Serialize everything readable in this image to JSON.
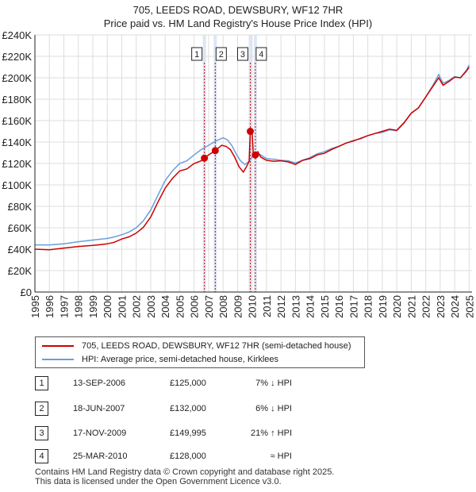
{
  "title_line1": "705, LEEDS ROAD, DEWSBURY, WF12 7HR",
  "title_line2": "Price paid vs. HM Land Registry's House Price Index (HPI)",
  "colors": {
    "price_paid": "#cc0000",
    "hpi": "#6a9fd8",
    "marker_line": "#cc0000",
    "marker_band": "#dde6f5"
  },
  "legend": [
    {
      "label": "705, LEEDS ROAD, DEWSBURY, WF12 7HR (semi-detached house)"
    },
    {
      "label": "HPI: Average price, semi-detached house, Kirklees"
    }
  ],
  "transactions": [
    {
      "num": "1",
      "date": "13-SEP-2006",
      "price": "£125,000",
      "hpi": "7% ↓ HPI"
    },
    {
      "num": "2",
      "date": "18-JUN-2007",
      "price": "£132,000",
      "hpi": "6% ↓ HPI"
    },
    {
      "num": "3",
      "date": "17-NOV-2009",
      "price": "£149,995",
      "hpi": "21% ↑ HPI"
    },
    {
      "num": "4",
      "date": "25-MAR-2010",
      "price": "£128,000",
      "hpi": "≈ HPI"
    }
  ],
  "footer_line1": "Contains HM Land Registry data © Crown copyright and database right 2025.",
  "footer_line2": "This data is licensed under the Open Government Licence v3.0.",
  "chart_data": {
    "type": "line",
    "title": "705, LEEDS ROAD, DEWSBURY, WF12 7HR — Price paid vs. HM Land Registry's House Price Index (HPI)",
    "xlabel": "",
    "ylabel": "",
    "xlim": [
      1995,
      2025.2
    ],
    "ylim": [
      0,
      240000
    ],
    "y_ticks": [
      0,
      20000,
      40000,
      60000,
      80000,
      100000,
      120000,
      140000,
      160000,
      180000,
      200000,
      220000,
      240000
    ],
    "y_tick_labels": [
      "£0",
      "£20K",
      "£40K",
      "£60K",
      "£80K",
      "£100K",
      "£120K",
      "£140K",
      "£160K",
      "£180K",
      "£200K",
      "£220K",
      "£240K"
    ],
    "x_ticks": [
      "1995",
      "1996",
      "1997",
      "1998",
      "1999",
      "2000",
      "2001",
      "2002",
      "2003",
      "2004",
      "2005",
      "2006",
      "2007",
      "2008",
      "2009",
      "2010",
      "2011",
      "2012",
      "2013",
      "2014",
      "2015",
      "2016",
      "2017",
      "2018",
      "2019",
      "2020",
      "2021",
      "2022",
      "2023",
      "2024",
      "2025"
    ],
    "grid": true,
    "series": [
      {
        "name": "705, LEEDS ROAD, DEWSBURY, WF12 7HR (semi-detached house)",
        "x": [
          1995.0,
          1996.0,
          1997.0,
          1998.0,
          1999.0,
          2000.0,
          2000.5,
          2001.0,
          2001.5,
          2002.0,
          2002.5,
          2003.0,
          2003.5,
          2004.0,
          2004.5,
          2005.0,
          2005.5,
          2006.0,
          2006.5,
          2006.7,
          2007.0,
          2007.46,
          2007.9,
          2008.2,
          2008.5,
          2008.8,
          2009.1,
          2009.4,
          2009.6,
          2009.8,
          2009.88,
          2010.0,
          2010.1,
          2010.23,
          2010.4,
          2010.6,
          2011.0,
          2011.5,
          2012.0,
          2012.5,
          2013.0,
          2013.5,
          2014.0,
          2014.5,
          2015.0,
          2015.5,
          2016.0,
          2016.5,
          2017.0,
          2017.5,
          2018.0,
          2018.5,
          2019.0,
          2019.5,
          2020.0,
          2020.5,
          2021.0,
          2021.5,
          2022.0,
          2022.5,
          2022.9,
          2023.2,
          2023.6,
          2024.0,
          2024.4,
          2024.8,
          2025.0
        ],
        "values": [
          40000,
          39500,
          41000,
          42500,
          43500,
          45000,
          46500,
          49500,
          51500,
          55000,
          60500,
          70000,
          84000,
          97000,
          106000,
          113000,
          115000,
          120000,
          122500,
          125000,
          128000,
          132000,
          137000,
          136000,
          133000,
          126000,
          117000,
          112000,
          116500,
          122000,
          149995,
          150000,
          126000,
          128000,
          131000,
          126000,
          123000,
          122000,
          122500,
          121500,
          119000,
          123000,
          124500,
          128000,
          129500,
          133000,
          136000,
          139000,
          141000,
          143500,
          146000,
          148000,
          150000,
          152000,
          151000,
          158000,
          167000,
          172000,
          182000,
          192000,
          200000,
          193000,
          196500,
          200500,
          200000,
          206000,
          210000
        ]
      },
      {
        "name": "HPI: Average price, semi-detached house, Kirklees",
        "x": [
          1995.0,
          1996.0,
          1997.0,
          1998.0,
          1999.0,
          2000.0,
          2000.5,
          2001.0,
          2001.5,
          2002.0,
          2002.5,
          2003.0,
          2003.5,
          2004.0,
          2004.5,
          2005.0,
          2005.5,
          2006.0,
          2006.5,
          2007.0,
          2007.5,
          2008.0,
          2008.3,
          2008.6,
          2008.9,
          2009.2,
          2009.5,
          2009.8,
          2010.0,
          2010.3,
          2010.6,
          2011.0,
          2011.5,
          2012.0,
          2012.5,
          2013.0,
          2013.5,
          2014.0,
          2014.5,
          2015.0,
          2015.5,
          2016.0,
          2016.5,
          2017.0,
          2017.5,
          2018.0,
          2018.5,
          2019.0,
          2019.5,
          2020.0,
          2020.5,
          2021.0,
          2021.5,
          2022.0,
          2022.5,
          2022.9,
          2023.2,
          2023.6,
          2024.0,
          2024.4,
          2024.8,
          2025.0
        ],
        "values": [
          44000,
          44000,
          45000,
          47000,
          48500,
          50000,
          51500,
          53500,
          56000,
          60000,
          66500,
          76500,
          90500,
          104000,
          113000,
          120000,
          122500,
          128000,
          133000,
          137000,
          141000,
          144000,
          142000,
          137000,
          129000,
          122500,
          119000,
          122000,
          126000,
          130000,
          128000,
          124500,
          124000,
          123000,
          122500,
          120500,
          123000,
          125500,
          129000,
          131000,
          134000,
          136000,
          139000,
          141500,
          143000,
          146000,
          148000,
          149000,
          151500,
          150500,
          157500,
          167000,
          172000,
          182000,
          193000,
          203000,
          195000,
          197500,
          201000,
          200000,
          207000,
          212000
        ]
      }
    ],
    "markers": [
      {
        "label": "1",
        "x": 2006.71,
        "y": 125000
      },
      {
        "label": "2",
        "x": 2007.46,
        "y": 132000
      },
      {
        "label": "3",
        "x": 2009.88,
        "y": 149995
      },
      {
        "label": "4",
        "x": 2010.23,
        "y": 128000
      }
    ]
  }
}
